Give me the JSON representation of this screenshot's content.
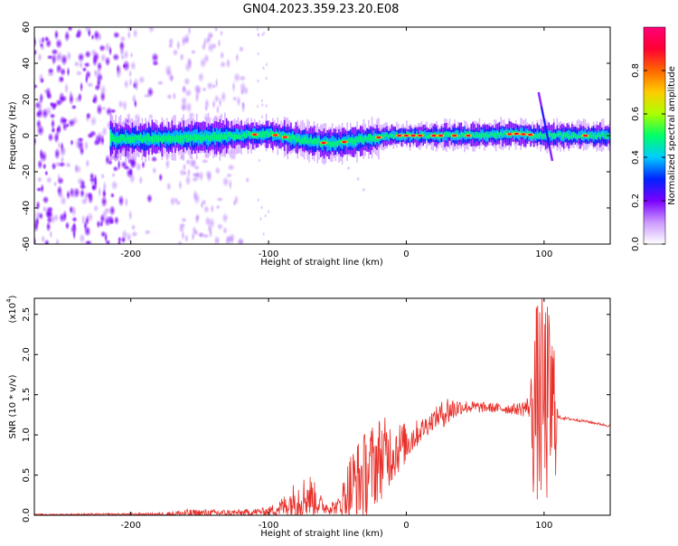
{
  "title": "GN04.2023.359.23.20.E08",
  "colors": {
    "snr_line": "#e8302a",
    "background": "#ffffff",
    "axis": "#000000"
  },
  "chart_data": [
    {
      "type": "heatmap",
      "title": "GN04.2023.359.23.20.E08",
      "xlabel": "Height of straight line (km)",
      "ylabel": "Frequency (Hz)",
      "xlim": [
        -270,
        148
      ],
      "ylim": [
        -60,
        60
      ],
      "xticks": [
        -200,
        -100,
        0,
        100
      ],
      "xtick_labels": [
        "-200",
        "-100",
        "0",
        "100"
      ],
      "yticks": [
        -60,
        -40,
        -20,
        0,
        20,
        40,
        60
      ],
      "ytick_labels": [
        "-60",
        "-40",
        "-20",
        "0",
        "20",
        "40",
        "60"
      ],
      "colorbar": {
        "label": "Normalized spectral amplitude",
        "range": [
          0,
          1
        ],
        "ticks": [
          0.0,
          0.2,
          0.4,
          0.6,
          0.8
        ],
        "tick_labels": [
          "0.0",
          "0.2",
          "0.4",
          "0.6",
          "0.8"
        ],
        "colormap": [
          "#ffffff",
          "#cc99ff",
          "#7a00ff",
          "#0022ff",
          "#00ccff",
          "#00ff66",
          "#aaff00",
          "#ffcc00",
          "#ff6600",
          "#ff0033",
          "#ff0077"
        ]
      },
      "band_center_hz": [
        {
          "x": -270,
          "y": 0
        },
        {
          "x": -200,
          "y": -2
        },
        {
          "x": -150,
          "y": -1
        },
        {
          "x": -100,
          "y": 1
        },
        {
          "x": -80,
          "y": -2
        },
        {
          "x": -60,
          "y": -4
        },
        {
          "x": -50,
          "y": -4
        },
        {
          "x": -30,
          "y": -2
        },
        {
          "x": -10,
          "y": 0
        },
        {
          "x": 0,
          "y": 0
        },
        {
          "x": 50,
          "y": 0
        },
        {
          "x": 80,
          "y": 1
        },
        {
          "x": 100,
          "y": 0
        },
        {
          "x": 148,
          "y": 0
        }
      ]
    },
    {
      "type": "line",
      "xlabel": "Height of straight line (km)",
      "ylabel": "SNR (10 * v/v)",
      "multiplier_label": "(x10",
      "multiplier_exp": "4",
      "multiplier_close": ")",
      "xlim": [
        -270,
        148
      ],
      "ylim": [
        0,
        27000
      ],
      "xticks": [
        -200,
        -100,
        0,
        100
      ],
      "xtick_labels": [
        "-200",
        "-100",
        "0",
        "100"
      ],
      "yticks": [
        0,
        5000,
        10000,
        15000,
        20000,
        25000
      ],
      "ytick_labels": [
        "0.0",
        "0.5",
        "1.0",
        "1.5",
        "2.0",
        "2.5"
      ],
      "series": [
        {
          "color": "#e8302a",
          "envelope": [
            {
              "x": -270,
              "base": 80,
              "amp": 80
            },
            {
              "x": -180,
              "base": 150,
              "amp": 150
            },
            {
              "x": -160,
              "base": 250,
              "amp": 500
            },
            {
              "x": -120,
              "base": 300,
              "amp": 400
            },
            {
              "x": -100,
              "base": 500,
              "amp": 500
            },
            {
              "x": -90,
              "base": 1000,
              "amp": 1300
            },
            {
              "x": -80,
              "base": 2000,
              "amp": 2500
            },
            {
              "x": -70,
              "base": 2500,
              "amp": 2800
            },
            {
              "x": -60,
              "base": 1000,
              "amp": 900
            },
            {
              "x": -50,
              "base": 1000,
              "amp": 900
            },
            {
              "x": -40,
              "base": 3500,
              "amp": 5000
            },
            {
              "x": -30,
              "base": 5000,
              "amp": 5500
            },
            {
              "x": -20,
              "base": 7000,
              "amp": 5500
            },
            {
              "x": -10,
              "base": 8000,
              "amp": 4000
            },
            {
              "x": 0,
              "base": 9000,
              "amp": 2500
            },
            {
              "x": 10,
              "base": 10500,
              "amp": 1500
            },
            {
              "x": 20,
              "base": 12000,
              "amp": 1200
            },
            {
              "x": 30,
              "base": 13000,
              "amp": 2000
            },
            {
              "x": 40,
              "base": 13500,
              "amp": 900
            },
            {
              "x": 60,
              "base": 13400,
              "amp": 600
            },
            {
              "x": 80,
              "base": 13200,
              "amp": 700
            },
            {
              "x": 90,
              "base": 13500,
              "amp": 1500
            },
            {
              "x": 92,
              "base": 14000,
              "amp": 12000
            },
            {
              "x": 100,
              "base": 14000,
              "amp": 14000
            },
            {
              "x": 108,
              "base": 13000,
              "amp": 10000
            },
            {
              "x": 110,
              "base": 12200,
              "amp": 200
            },
            {
              "x": 130,
              "base": 11700,
              "amp": 150
            },
            {
              "x": 148,
              "base": 11100,
              "amp": 150
            }
          ]
        }
      ]
    }
  ]
}
